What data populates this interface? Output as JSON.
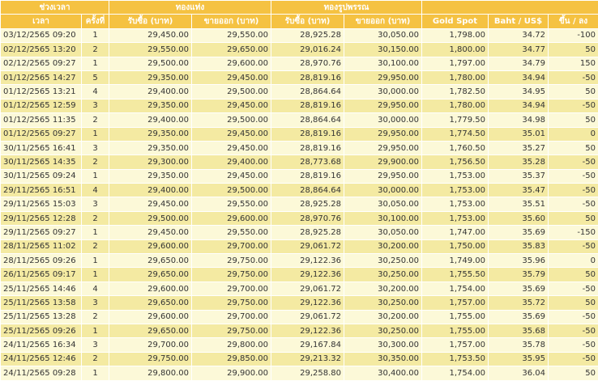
{
  "header": {
    "group_time": "ช่วงเวลา",
    "group_bar": "ทองแท่ง",
    "group_ornament": "ทองรูปพรรณ",
    "time": "เวลา",
    "count": "ครั้งที่",
    "bar_buy": "รับซื้อ (บาท)",
    "bar_sell": "ขายออก (บาท)",
    "orn_buy": "รับซื้อ (บาท)",
    "orn_sell": "ขายออก (บาท)",
    "gold_spot": "Gold Spot",
    "baht_usd": "Baht / US$",
    "change": "ขึ้น / ลง"
  },
  "rows": [
    {
      "time": "03/12/2565 09:20",
      "count": "1",
      "bar_buy": "29,450.00",
      "bar_sell": "29,550.00",
      "orn_buy": "28,925.28",
      "orn_sell": "30,050.00",
      "spot": "1,798.00",
      "fx": "34.72",
      "chg": "-100"
    },
    {
      "time": "02/12/2565 13:20",
      "count": "2",
      "bar_buy": "29,550.00",
      "bar_sell": "29,650.00",
      "orn_buy": "29,016.24",
      "orn_sell": "30,150.00",
      "spot": "1,800.00",
      "fx": "34.77",
      "chg": "50"
    },
    {
      "time": "02/12/2565 09:27",
      "count": "1",
      "bar_buy": "29,500.00",
      "bar_sell": "29,600.00",
      "orn_buy": "28,970.76",
      "orn_sell": "30,100.00",
      "spot": "1,797.00",
      "fx": "34.79",
      "chg": "150"
    },
    {
      "time": "01/12/2565 14:27",
      "count": "5",
      "bar_buy": "29,350.00",
      "bar_sell": "29,450.00",
      "orn_buy": "28,819.16",
      "orn_sell": "29,950.00",
      "spot": "1,780.00",
      "fx": "34.94",
      "chg": "-50"
    },
    {
      "time": "01/12/2565 13:21",
      "count": "4",
      "bar_buy": "29,400.00",
      "bar_sell": "29,500.00",
      "orn_buy": "28,864.64",
      "orn_sell": "30,000.00",
      "spot": "1,782.50",
      "fx": "34.95",
      "chg": "50"
    },
    {
      "time": "01/12/2565 12:59",
      "count": "3",
      "bar_buy": "29,350.00",
      "bar_sell": "29,450.00",
      "orn_buy": "28,819.16",
      "orn_sell": "29,950.00",
      "spot": "1,780.00",
      "fx": "34.94",
      "chg": "-50"
    },
    {
      "time": "01/12/2565 11:35",
      "count": "2",
      "bar_buy": "29,400.00",
      "bar_sell": "29,500.00",
      "orn_buy": "28,864.64",
      "orn_sell": "30,000.00",
      "spot": "1,779.50",
      "fx": "34.98",
      "chg": "50"
    },
    {
      "time": "01/12/2565 09:27",
      "count": "1",
      "bar_buy": "29,350.00",
      "bar_sell": "29,450.00",
      "orn_buy": "28,819.16",
      "orn_sell": "29,950.00",
      "spot": "1,774.50",
      "fx": "35.01",
      "chg": "0"
    },
    {
      "time": "30/11/2565 16:41",
      "count": "3",
      "bar_buy": "29,350.00",
      "bar_sell": "29,450.00",
      "orn_buy": "28,819.16",
      "orn_sell": "29,950.00",
      "spot": "1,760.50",
      "fx": "35.27",
      "chg": "50"
    },
    {
      "time": "30/11/2565 14:35",
      "count": "2",
      "bar_buy": "29,300.00",
      "bar_sell": "29,400.00",
      "orn_buy": "28,773.68",
      "orn_sell": "29,900.00",
      "spot": "1,756.50",
      "fx": "35.28",
      "chg": "-50"
    },
    {
      "time": "30/11/2565 09:24",
      "count": "1",
      "bar_buy": "29,350.00",
      "bar_sell": "29,450.00",
      "orn_buy": "28,819.16",
      "orn_sell": "29,950.00",
      "spot": "1,753.00",
      "fx": "35.37",
      "chg": "-50"
    },
    {
      "time": "29/11/2565 16:51",
      "count": "4",
      "bar_buy": "29,400.00",
      "bar_sell": "29,500.00",
      "orn_buy": "28,864.64",
      "orn_sell": "30,000.00",
      "spot": "1,753.00",
      "fx": "35.47",
      "chg": "-50"
    },
    {
      "time": "29/11/2565 15:03",
      "count": "3",
      "bar_buy": "29,450.00",
      "bar_sell": "29,550.00",
      "orn_buy": "28,925.28",
      "orn_sell": "30,050.00",
      "spot": "1,753.00",
      "fx": "35.51",
      "chg": "-50"
    },
    {
      "time": "29/11/2565 12:28",
      "count": "2",
      "bar_buy": "29,500.00",
      "bar_sell": "29,600.00",
      "orn_buy": "28,970.76",
      "orn_sell": "30,100.00",
      "spot": "1,753.00",
      "fx": "35.60",
      "chg": "50"
    },
    {
      "time": "29/11/2565 09:27",
      "count": "1",
      "bar_buy": "29,450.00",
      "bar_sell": "29,550.00",
      "orn_buy": "28,925.28",
      "orn_sell": "30,050.00",
      "spot": "1,747.00",
      "fx": "35.69",
      "chg": "-150"
    },
    {
      "time": "28/11/2565 11:02",
      "count": "2",
      "bar_buy": "29,600.00",
      "bar_sell": "29,700.00",
      "orn_buy": "29,061.72",
      "orn_sell": "30,200.00",
      "spot": "1,750.00",
      "fx": "35.83",
      "chg": "-50"
    },
    {
      "time": "28/11/2565 09:26",
      "count": "1",
      "bar_buy": "29,650.00",
      "bar_sell": "29,750.00",
      "orn_buy": "29,122.36",
      "orn_sell": "30,250.00",
      "spot": "1,749.00",
      "fx": "35.96",
      "chg": "0"
    },
    {
      "time": "26/11/2565 09:17",
      "count": "1",
      "bar_buy": "29,650.00",
      "bar_sell": "29,750.00",
      "orn_buy": "29,122.36",
      "orn_sell": "30,250.00",
      "spot": "1,755.50",
      "fx": "35.79",
      "chg": "50"
    },
    {
      "time": "25/11/2565 14:46",
      "count": "4",
      "bar_buy": "29,600.00",
      "bar_sell": "29,700.00",
      "orn_buy": "29,061.72",
      "orn_sell": "30,200.00",
      "spot": "1,754.00",
      "fx": "35.69",
      "chg": "-50"
    },
    {
      "time": "25/11/2565 13:58",
      "count": "3",
      "bar_buy": "29,650.00",
      "bar_sell": "29,750.00",
      "orn_buy": "29,122.36",
      "orn_sell": "30,250.00",
      "spot": "1,757.00",
      "fx": "35.72",
      "chg": "50"
    },
    {
      "time": "25/11/2565 13:28",
      "count": "2",
      "bar_buy": "29,600.00",
      "bar_sell": "29,700.00",
      "orn_buy": "29,061.72",
      "orn_sell": "30,200.00",
      "spot": "1,755.00",
      "fx": "35.69",
      "chg": "-50"
    },
    {
      "time": "25/11/2565 09:26",
      "count": "1",
      "bar_buy": "29,650.00",
      "bar_sell": "29,750.00",
      "orn_buy": "29,122.36",
      "orn_sell": "30,250.00",
      "spot": "1,755.00",
      "fx": "35.68",
      "chg": "-50"
    },
    {
      "time": "24/11/2565 16:34",
      "count": "3",
      "bar_buy": "29,700.00",
      "bar_sell": "29,800.00",
      "orn_buy": "29,167.84",
      "orn_sell": "30,300.00",
      "spot": "1,757.00",
      "fx": "35.78",
      "chg": "-50"
    },
    {
      "time": "24/11/2565 12:46",
      "count": "2",
      "bar_buy": "29,750.00",
      "bar_sell": "29,850.00",
      "orn_buy": "29,213.32",
      "orn_sell": "30,350.00",
      "spot": "1,753.50",
      "fx": "35.95",
      "chg": "-50"
    },
    {
      "time": "24/11/2565 09:28",
      "count": "1",
      "bar_buy": "29,800.00",
      "bar_sell": "29,900.00",
      "orn_buy": "29,258.80",
      "orn_sell": "30,400.00",
      "spot": "1,754.00",
      "fx": "36.04",
      "chg": "50"
    }
  ]
}
